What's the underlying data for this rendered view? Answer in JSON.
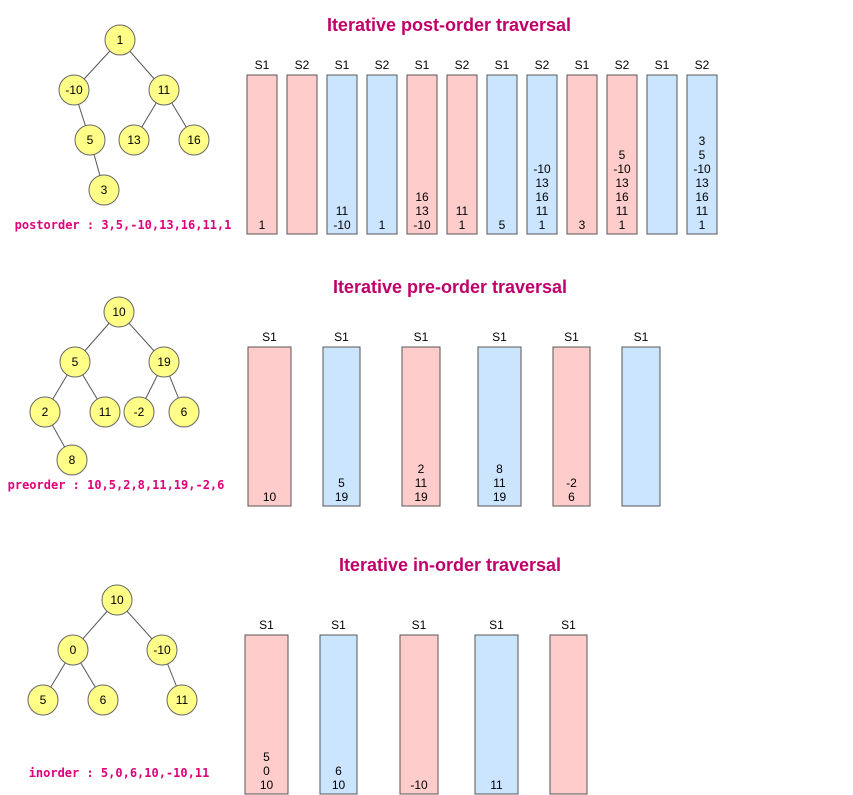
{
  "colors": {
    "title": "#c0006a",
    "order_text": "#e0007a",
    "node_fill": "#ffff88",
    "node_stroke": "#666666",
    "edge": "#555555",
    "pink": "#ffcccc",
    "blue": "#cce5ff",
    "stack_stroke": "#555555"
  },
  "sections": [
    {
      "id": "postorder",
      "title": "Iterative post-order traversal",
      "order_text": "postorder : 3,5,-10,13,16,11,1",
      "tree": {
        "nodes": [
          "1",
          "-10",
          "11",
          "5",
          "13",
          "16",
          "3"
        ],
        "edges": [
          [
            0,
            1
          ],
          [
            0,
            2
          ],
          [
            1,
            3
          ],
          [
            2,
            4
          ],
          [
            2,
            5
          ],
          [
            3,
            6
          ]
        ]
      },
      "stacks": [
        {
          "label": "S1",
          "color": "pink",
          "values": [
            "1"
          ]
        },
        {
          "label": "S2",
          "color": "pink",
          "values": []
        },
        {
          "label": "S1",
          "color": "blue",
          "values": [
            "11",
            "-10"
          ]
        },
        {
          "label": "S2",
          "color": "blue",
          "values": [
            "1"
          ]
        },
        {
          "label": "S1",
          "color": "pink",
          "values": [
            "16",
            "13",
            "-10"
          ]
        },
        {
          "label": "S2",
          "color": "pink",
          "values": [
            "11",
            "1"
          ]
        },
        {
          "label": "S1",
          "color": "blue",
          "values": [
            "5"
          ]
        },
        {
          "label": "S2",
          "color": "blue",
          "values": [
            "-10",
            "13",
            "16",
            "11",
            "1"
          ]
        },
        {
          "label": "S1",
          "color": "pink",
          "values": [
            "3"
          ]
        },
        {
          "label": "S2",
          "color": "pink",
          "values": [
            "5",
            "-10",
            "13",
            "16",
            "11",
            "1"
          ]
        },
        {
          "label": "S1",
          "color": "blue",
          "values": []
        },
        {
          "label": "S2",
          "color": "blue",
          "values": [
            "3",
            "5",
            "-10",
            "13",
            "16",
            "11",
            "1"
          ]
        }
      ]
    },
    {
      "id": "preorder",
      "title": "Iterative pre-order traversal",
      "order_text": "preorder : 10,5,2,8,11,19,-2,6",
      "tree": {
        "nodes": [
          "10",
          "5",
          "19",
          "2",
          "11",
          "-2",
          "6",
          "8"
        ],
        "edges": [
          [
            0,
            1
          ],
          [
            0,
            2
          ],
          [
            1,
            3
          ],
          [
            1,
            4
          ],
          [
            2,
            5
          ],
          [
            2,
            6
          ],
          [
            3,
            7
          ]
        ]
      },
      "stacks": [
        {
          "label": "S1",
          "color": "pink",
          "values": [
            "10"
          ]
        },
        {
          "label": "S1",
          "color": "blue",
          "values": [
            "5",
            "19"
          ]
        },
        {
          "label": "S1",
          "color": "pink",
          "values": [
            "2",
            "11",
            "19"
          ]
        },
        {
          "label": "S1",
          "color": "blue",
          "values": [
            "8",
            "11",
            "19"
          ]
        },
        {
          "label": "S1",
          "color": "pink",
          "values": [
            "-2",
            "6"
          ]
        },
        {
          "label": "S1",
          "color": "blue",
          "values": []
        }
      ]
    },
    {
      "id": "inorder",
      "title": "Iterative in-order traversal",
      "order_text": "inorder : 5,0,6,10,-10,11",
      "tree": {
        "nodes": [
          "10",
          "0",
          "-10",
          "5",
          "6",
          "11"
        ],
        "edges": [
          [
            0,
            1
          ],
          [
            0,
            2
          ],
          [
            1,
            3
          ],
          [
            1,
            4
          ],
          [
            2,
            5
          ]
        ]
      },
      "stacks": [
        {
          "label": "S1",
          "color": "pink",
          "values": [
            "5",
            "0",
            "10"
          ]
        },
        {
          "label": "S1",
          "color": "blue",
          "values": [
            "6",
            "10"
          ]
        },
        {
          "label": "S1",
          "color": "pink",
          "values": [
            "-10"
          ]
        },
        {
          "label": "S1",
          "color": "blue",
          "values": [
            "11"
          ]
        },
        {
          "label": "S1",
          "color": "pink",
          "values": []
        }
      ]
    }
  ]
}
